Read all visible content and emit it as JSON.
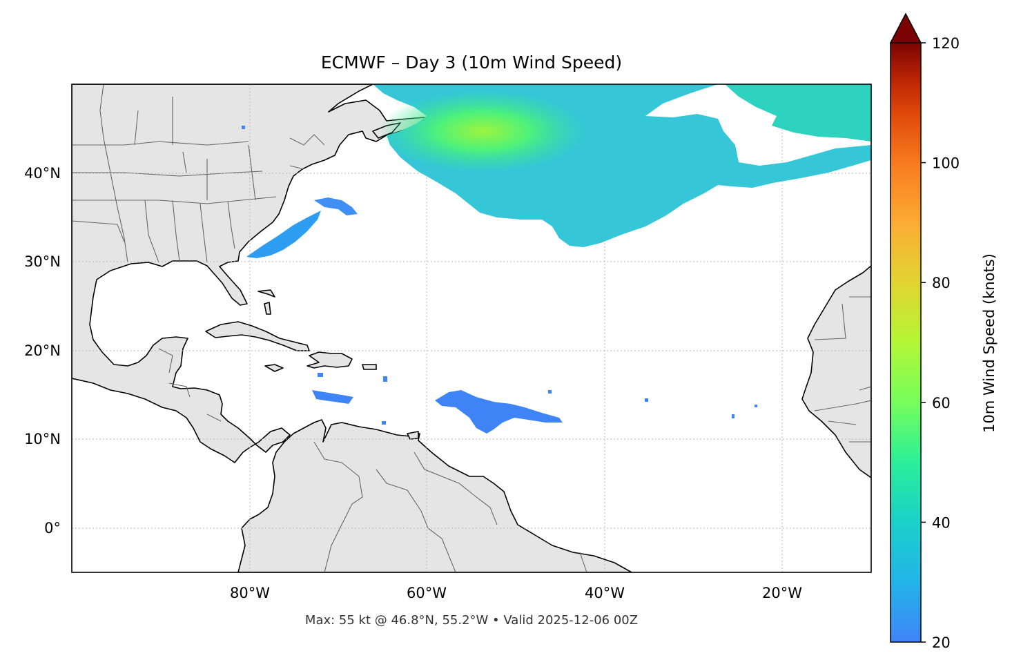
{
  "title": "ECMWF – Day 3 (10m Wind Speed)",
  "footer": "Max: 55 kt @ 46.8°N, 55.2°W • Valid 2025-12-06 00Z",
  "map": {
    "extent": {
      "lon": [
        -100,
        -10
      ],
      "lat": [
        -5,
        50
      ]
    },
    "lat_ticks": [
      {
        "value": 40,
        "label": "40°N"
      },
      {
        "value": 30,
        "label": "30°N"
      },
      {
        "value": 20,
        "label": "20°N"
      },
      {
        "value": 10,
        "label": "10°N"
      },
      {
        "value": 0,
        "label": "0°"
      }
    ],
    "lon_ticks": [
      {
        "value": -80,
        "label": "80°W"
      },
      {
        "value": -60,
        "label": "60°W"
      },
      {
        "value": -40,
        "label": "40°W"
      },
      {
        "value": -20,
        "label": "20°W"
      }
    ],
    "gridlines": true,
    "land_color": "#e5e5e5",
    "ocean_color": "#ffffff"
  },
  "colorbar": {
    "label": "10m Wind Speed (knots)",
    "min": 20,
    "max": 120,
    "ticks": [
      {
        "value": 120,
        "label": "120"
      },
      {
        "value": 100,
        "label": "100"
      },
      {
        "value": 80,
        "label": "80"
      },
      {
        "value": 60,
        "label": "60"
      },
      {
        "value": 40,
        "label": "40"
      },
      {
        "value": 20,
        "label": "20"
      }
    ],
    "extend": "max",
    "colormap": "turbo"
  }
}
